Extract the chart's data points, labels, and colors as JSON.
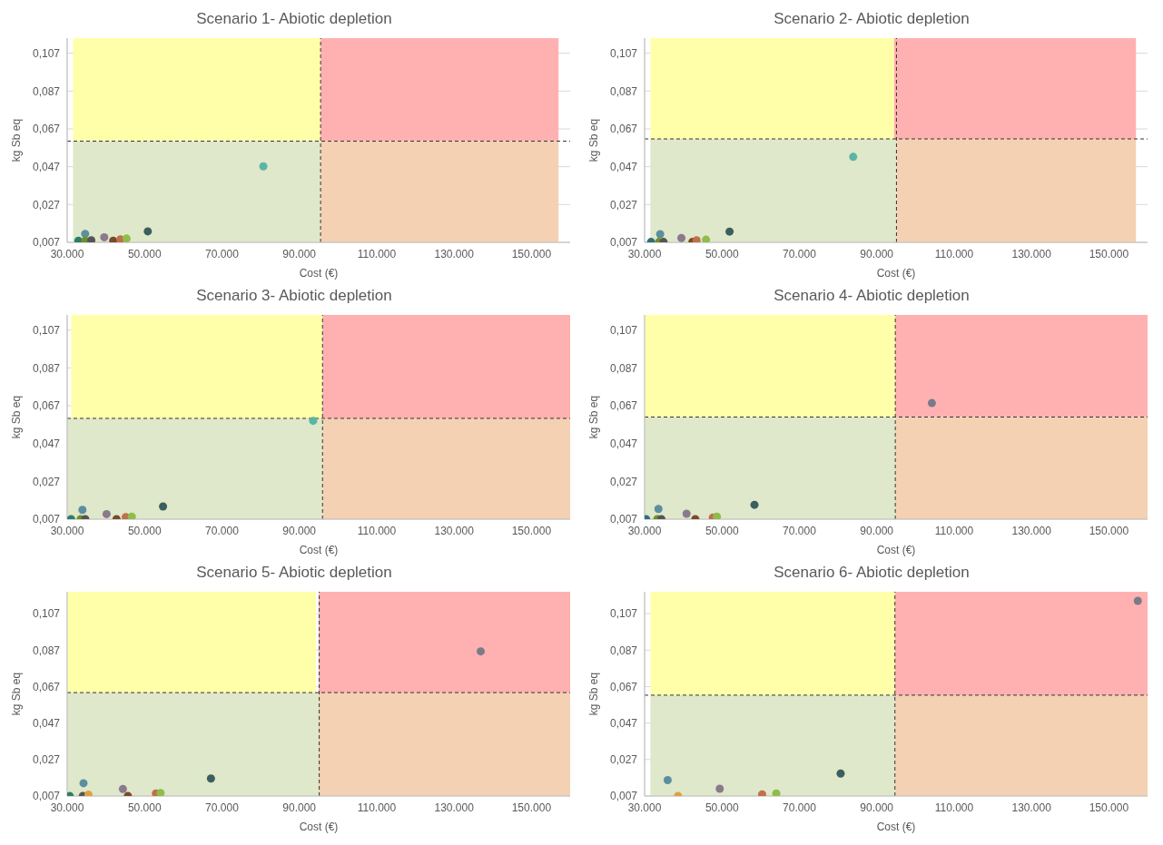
{
  "chart_data": [
    {
      "type": "scatter",
      "title": "Scenario 1- Abiotic depletion",
      "xlabel": "Cost (€)",
      "ylabel": "kg Sb eq",
      "grid": true,
      "marker": "circle",
      "xlim": [
        30000,
        160000
      ],
      "ylim": [
        0.007,
        0.115
      ],
      "xticks": [
        {
          "value": 30000,
          "label": "30.000"
        },
        {
          "value": 50000,
          "label": "50.000"
        },
        {
          "value": 70000,
          "label": "70.000"
        },
        {
          "value": 90000,
          "label": "90.000"
        },
        {
          "value": 110000,
          "label": "110.000"
        },
        {
          "value": 130000,
          "label": "130.000"
        },
        {
          "value": 150000,
          "label": "150.000"
        }
      ],
      "yticks": [
        {
          "value": 0.007,
          "label": "0,007"
        },
        {
          "value": 0.027,
          "label": "0,027"
        },
        {
          "value": 0.047,
          "label": "0,047"
        },
        {
          "value": 0.067,
          "label": "0,067"
        },
        {
          "value": 0.087,
          "label": "0,087"
        },
        {
          "value": 0.107,
          "label": "0,107"
        }
      ],
      "bands": [
        {
          "axis": "x",
          "from": 31500,
          "to": 95500,
          "color": "#ffffaa"
        },
        {
          "axis": "x",
          "from": 95500,
          "to": 157000,
          "color": "#ffb1b1"
        },
        {
          "axis": "x",
          "from": 31500,
          "to": 95500,
          "color": "#dfe8ca"
        },
        {
          "axis": "x",
          "from": 95500,
          "to": 157000,
          "color": "#f4d1b2"
        }
      ],
      "ref_lines": [
        {
          "axis": "y",
          "value": 0.0605,
          "line_style": "dashed",
          "color": "#333333"
        },
        {
          "axis": "x",
          "value": 95500,
          "line_style": "dashed",
          "color": "#333333"
        }
      ],
      "x": [
        32900,
        34650,
        34650,
        36230,
        39580,
        41900,
        43770,
        45350,
        50840,
        80700
      ],
      "values": [
        0.0079,
        0.0115,
        0.0079,
        0.0081,
        0.0097,
        0.0079,
        0.0086,
        0.009,
        0.0128,
        0.0472
      ],
      "colors": [
        "#2e7d6b",
        "#5b8fa0",
        "#6d8f2a",
        "#555555",
        "#8a7a8c",
        "#7a4a2a",
        "#c0704a",
        "#8fbc4a",
        "#3d5e5e",
        "#5bb5a5"
      ]
    },
    {
      "type": "scatter",
      "title": "Scenario 2- Abiotic depletion",
      "xlabel": "Cost (€)",
      "ylabel": "kg Sb eq",
      "grid": true,
      "marker": "circle",
      "xlim": [
        30000,
        160000
      ],
      "ylim": [
        0.007,
        0.115
      ],
      "xticks": [
        {
          "value": 30000,
          "label": "30.000"
        },
        {
          "value": 50000,
          "label": "50.000"
        },
        {
          "value": 70000,
          "label": "70.000"
        },
        {
          "value": 90000,
          "label": "90.000"
        },
        {
          "value": 110000,
          "label": "110.000"
        },
        {
          "value": 130000,
          "label": "130.000"
        },
        {
          "value": 150000,
          "label": "150.000"
        }
      ],
      "yticks": [
        {
          "value": 0.007,
          "label": "0,007"
        },
        {
          "value": 0.027,
          "label": "0,027"
        },
        {
          "value": 0.047,
          "label": "0,047"
        },
        {
          "value": 0.067,
          "label": "0,067"
        },
        {
          "value": 0.087,
          "label": "0,087"
        },
        {
          "value": 0.107,
          "label": "0,107"
        }
      ],
      "bands": [
        {
          "axis": "x",
          "from": 31500,
          "to": 94500,
          "color": "#ffffaa"
        },
        {
          "axis": "x",
          "from": 94500,
          "to": 157000,
          "color": "#ffb1b1"
        },
        {
          "axis": "x",
          "from": 31500,
          "to": 95100,
          "color": "#dfe8ca"
        },
        {
          "axis": "x",
          "from": 95100,
          "to": 157000,
          "color": "#f4d1b2"
        }
      ],
      "ref_lines": [
        {
          "axis": "y",
          "value": 0.0617,
          "line_style": "dashed",
          "color": "#333333"
        },
        {
          "axis": "x",
          "value": 95100,
          "line_style": "dashed",
          "color": "#333333"
        }
      ],
      "x": [
        31670,
        34020,
        33730,
        34900,
        39510,
        42350,
        43430,
        45880,
        51960,
        83920
      ],
      "values": [
        0.0072,
        0.0113,
        0.0072,
        0.0072,
        0.0093,
        0.0072,
        0.0081,
        0.0084,
        0.0127,
        0.0522
      ],
      "colors": [
        "#2e6f7d",
        "#5b8fa0",
        "#6d8f2a",
        "#555555",
        "#8a7a8c",
        "#7a4a2a",
        "#c0704a",
        "#8fbc4a",
        "#3d5e5e",
        "#5bb5a5"
      ]
    },
    {
      "type": "scatter",
      "title": "Scenario 3- Abiotic depletion",
      "xlabel": "Cost (€)",
      "ylabel": "kg Sb eq",
      "grid": true,
      "marker": "circle",
      "xlim": [
        30000,
        160000
      ],
      "ylim": [
        0.007,
        0.115
      ],
      "xticks": [
        {
          "value": 30000,
          "label": "30.000"
        },
        {
          "value": 50000,
          "label": "50.000"
        },
        {
          "value": 70000,
          "label": "70.000"
        },
        {
          "value": 90000,
          "label": "90.000"
        },
        {
          "value": 110000,
          "label": "110.000"
        },
        {
          "value": 130000,
          "label": "130.000"
        },
        {
          "value": 150000,
          "label": "150.000"
        }
      ],
      "yticks": [
        {
          "value": 0.007,
          "label": "0,007"
        },
        {
          "value": 0.027,
          "label": "0,027"
        },
        {
          "value": 0.047,
          "label": "0,047"
        },
        {
          "value": 0.067,
          "label": "0,067"
        },
        {
          "value": 0.087,
          "label": "0,087"
        },
        {
          "value": 0.107,
          "label": "0,107"
        }
      ],
      "bands": [
        {
          "axis": "x",
          "from": 31000,
          "to": 96000,
          "color": "#ffffaa"
        },
        {
          "axis": "x",
          "from": 96000,
          "to": 160000,
          "color": "#ffb1b1"
        },
        {
          "axis": "x",
          "from": 30000,
          "to": 96000,
          "color": "#dfe8ca"
        },
        {
          "axis": "x",
          "from": 96000,
          "to": 160000,
          "color": "#f4d1b2"
        }
      ],
      "ref_lines": [
        {
          "axis": "y",
          "value": 0.0603,
          "line_style": "dashed",
          "color": "#333333"
        },
        {
          "axis": "x",
          "value": 96000,
          "line_style": "dashed",
          "color": "#333333"
        }
      ],
      "x": [
        31010,
        33940,
        33490,
        34680,
        40180,
        42750,
        45140,
        46700,
        54770,
        93580
      ],
      "values": [
        0.007,
        0.0119,
        0.007,
        0.007,
        0.0097,
        0.007,
        0.0081,
        0.0083,
        0.0137,
        0.059
      ],
      "colors": [
        "#2e7d6b",
        "#5b8fa0",
        "#6d8f2a",
        "#555555",
        "#8a7a8c",
        "#7a4a2a",
        "#c0704a",
        "#8fbc4a",
        "#3d5e5e",
        "#5bb5a5"
      ]
    },
    {
      "type": "scatter",
      "title": "Scenario 4- Abiotic depletion",
      "xlabel": "Cost (€)",
      "ylabel": "kg Sb eq",
      "grid": true,
      "marker": "circle",
      "xlim": [
        30000,
        160000
      ],
      "ylim": [
        0.007,
        0.115
      ],
      "xticks": [
        {
          "value": 30000,
          "label": "30.000"
        },
        {
          "value": 50000,
          "label": "50.000"
        },
        {
          "value": 70000,
          "label": "70.000"
        },
        {
          "value": 90000,
          "label": "90.000"
        },
        {
          "value": 110000,
          "label": "110.000"
        },
        {
          "value": 130000,
          "label": "130.000"
        },
        {
          "value": 150000,
          "label": "150.000"
        }
      ],
      "yticks": [
        {
          "value": 0.007,
          "label": "0,007"
        },
        {
          "value": 0.027,
          "label": "0,027"
        },
        {
          "value": 0.047,
          "label": "0,047"
        },
        {
          "value": 0.067,
          "label": "0,067"
        },
        {
          "value": 0.087,
          "label": "0,087"
        },
        {
          "value": 0.107,
          "label": "0,107"
        }
      ],
      "bands": [
        {
          "axis": "x",
          "from": 30000,
          "to": 94800,
          "color": "#ffffaa"
        },
        {
          "axis": "x",
          "from": 94800,
          "to": 160000,
          "color": "#ffb1b1"
        },
        {
          "axis": "x",
          "from": 30000,
          "to": 94800,
          "color": "#dfe8ca"
        },
        {
          "axis": "x",
          "from": 94800,
          "to": 160000,
          "color": "#f4d1b2"
        }
      ],
      "ref_lines": [
        {
          "axis": "y",
          "value": 0.061,
          "line_style": "dashed",
          "color": "#333333"
        },
        {
          "axis": "x",
          "value": 94800,
          "line_style": "dashed",
          "color": "#333333"
        }
      ],
      "x": [
        30380,
        33580,
        33300,
        34340,
        40850,
        43110,
        47640,
        48680,
        58400,
        104250
      ],
      "values": [
        0.007,
        0.0124,
        0.007,
        0.007,
        0.0099,
        0.007,
        0.0079,
        0.0083,
        0.0146,
        0.0684
      ],
      "colors": [
        "#2e6f7d",
        "#5b8fa0",
        "#6d8f2a",
        "#555555",
        "#8a7a8c",
        "#7a4a2a",
        "#c0704a",
        "#8fbc4a",
        "#3d5e5e",
        "#7a7a8a"
      ]
    },
    {
      "type": "scatter",
      "title": "Scenario 5- Abiotic depletion",
      "xlabel": "Cost (€)",
      "ylabel": "kg Sb eq",
      "grid": true,
      "marker": "circle",
      "xlim": [
        30000,
        160000
      ],
      "ylim": [
        0.007,
        0.119
      ],
      "xticks": [
        {
          "value": 30000,
          "label": "30.000"
        },
        {
          "value": 50000,
          "label": "50.000"
        },
        {
          "value": 70000,
          "label": "70.000"
        },
        {
          "value": 90000,
          "label": "90.000"
        },
        {
          "value": 110000,
          "label": "110.000"
        },
        {
          "value": 130000,
          "label": "130.000"
        },
        {
          "value": 150000,
          "label": "150.000"
        }
      ],
      "yticks": [
        {
          "value": 0.007,
          "label": "0,007"
        },
        {
          "value": 0.027,
          "label": "0,027"
        },
        {
          "value": 0.047,
          "label": "0,047"
        },
        {
          "value": 0.067,
          "label": "0,067"
        },
        {
          "value": 0.087,
          "label": "0,087"
        },
        {
          "value": 0.107,
          "label": "0,107"
        }
      ],
      "bands": [
        {
          "axis": "x",
          "from": 30000,
          "to": 94300,
          "color": "#ffffaa"
        },
        {
          "axis": "x",
          "from": 95000,
          "to": 160000,
          "color": "#ffb1b1"
        },
        {
          "axis": "x",
          "from": 30000,
          "to": 95000,
          "color": "#dfe8ca"
        },
        {
          "axis": "x",
          "from": 95000,
          "to": 160000,
          "color": "#f4d1b2"
        }
      ],
      "ref_lines": [
        {
          "axis": "y",
          "value": 0.0637,
          "line_style": "dashed",
          "color": "#333333"
        },
        {
          "axis": "x",
          "value": 95140,
          "line_style": "dashed",
          "color": "#333333"
        }
      ],
      "x": [
        30640,
        34220,
        34040,
        35500,
        44400,
        45690,
        52940,
        54130,
        67160,
        136880
      ],
      "values": [
        0.007,
        0.014,
        0.007,
        0.0077,
        0.0108,
        0.007,
        0.0084,
        0.0086,
        0.0166,
        0.0863
      ],
      "colors": [
        "#2e7d6b",
        "#5b8fa0",
        "#555555",
        "#e0a040",
        "#8a7a8c",
        "#7a4a2a",
        "#c0704a",
        "#8fbc4a",
        "#3d5e5e",
        "#7a7a8a"
      ]
    },
    {
      "type": "scatter",
      "title": "Scenario 6- Abiotic depletion",
      "xlabel": "Cost (€)",
      "ylabel": "kg Sb eq",
      "grid": true,
      "marker": "circle",
      "xlim": [
        30000,
        160000
      ],
      "ylim": [
        0.007,
        0.119
      ],
      "xticks": [
        {
          "value": 30000,
          "label": "30.000"
        },
        {
          "value": 50000,
          "label": "50.000"
        },
        {
          "value": 70000,
          "label": "70.000"
        },
        {
          "value": 90000,
          "label": "90.000"
        },
        {
          "value": 110000,
          "label": "110.000"
        },
        {
          "value": 130000,
          "label": "130.000"
        },
        {
          "value": 150000,
          "label": "150.000"
        }
      ],
      "yticks": [
        {
          "value": 0.007,
          "label": "0,007"
        },
        {
          "value": 0.027,
          "label": "0,027"
        },
        {
          "value": 0.047,
          "label": "0,047"
        },
        {
          "value": 0.067,
          "label": "0,067"
        },
        {
          "value": 0.087,
          "label": "0,087"
        },
        {
          "value": 0.107,
          "label": "0,107"
        }
      ],
      "bands": [
        {
          "axis": "x",
          "from": 31500,
          "to": 95500,
          "color": "#ffffaa"
        },
        {
          "axis": "x",
          "from": 94700,
          "to": 160000,
          "color": "#ffb1b1"
        },
        {
          "axis": "x",
          "from": 31500,
          "to": 94700,
          "color": "#dfe8ca"
        },
        {
          "axis": "x",
          "from": 94700,
          "to": 160000,
          "color": "#f4d1b2"
        }
      ],
      "ref_lines": [
        {
          "axis": "y",
          "value": 0.0623,
          "line_style": "dashed",
          "color": "#333333"
        },
        {
          "axis": "x",
          "value": 94700,
          "line_style": "dashed",
          "color": "#333333"
        }
      ],
      "x": [
        35960,
        38650,
        49420,
        60380,
        64040,
        80670,
        157480
      ],
      "values": [
        0.0157,
        0.007,
        0.011,
        0.0079,
        0.0084,
        0.0193,
        0.114
      ],
      "colors": [
        "#5b8fa0",
        "#e0a040",
        "#8a7a8c",
        "#c0704a",
        "#8fbc4a",
        "#3d5e5e",
        "#7a7a8a"
      ]
    }
  ]
}
